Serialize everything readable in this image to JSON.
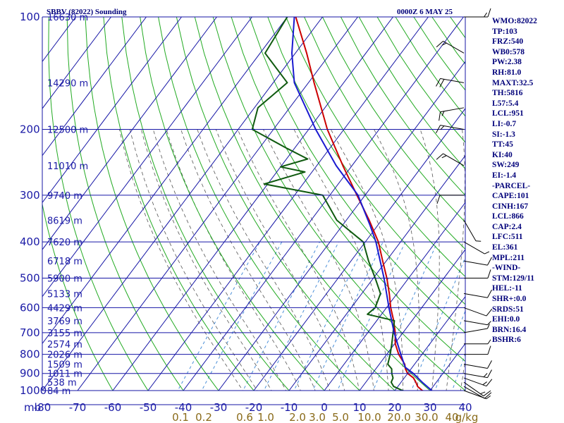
{
  "header": {
    "title": "SBBV (82022) Sounding",
    "time": "0000Z  6 MAY 25"
  },
  "indices": [
    "WMO:82022",
    "TP:103",
    "FRZ:540",
    "WB0:578",
    "PW:2.38",
    "RH:81.0",
    "MAXT:32.5",
    "TH:5816",
    "L57:5.4",
    "LCL:951",
    "LI:-0.7",
    "SI:-1.3",
    "TT:45",
    "KI:40",
    "SW:249",
    "EI:-1.4",
    "-PARCEL-",
    "CAPE:101",
    "CINH:167",
    "LCL:866",
    "CAP:2.4",
    "LFC:511",
    "EL:361",
    "MPL:211",
    "-WIND-",
    "STM:129/11",
    "HEL:-11",
    "SHR+:0.0",
    "SRDS:51",
    "EHI:0.0",
    "BRN:16.4",
    "BSHR:6"
  ],
  "colors": {
    "grid": "#1616a6",
    "temperature": "#cc0000",
    "dewpoint": "#0f5a0f",
    "parcel": "#1a1ad0",
    "dry_adiabat": "#22aa22",
    "moist_adiabat": "#555555",
    "mixing_ratio": "#4a8fd8",
    "wind_barb": "#000000"
  },
  "chart_data": {
    "type": "skew-t",
    "x_axis": {
      "units_label": "mb",
      "range": [
        -80,
        40
      ],
      "ticks": [
        -80,
        -70,
        -60,
        -50,
        -40,
        -30,
        -20,
        -10,
        0,
        10,
        20,
        30,
        40
      ]
    },
    "y_axis": {
      "range": [
        1000,
        100
      ],
      "scale": "log",
      "ticks": [
        100,
        200,
        300,
        400,
        500,
        600,
        700,
        800,
        900,
        1000
      ]
    },
    "height_labels": [
      {
        "p": 100,
        "label": "16630 m"
      },
      {
        "p": 150,
        "label": "14290 m"
      },
      {
        "p": 200,
        "label": "12500 m"
      },
      {
        "p": 250,
        "label": "11010 m"
      },
      {
        "p": 300,
        "label": "9740 m"
      },
      {
        "p": 350,
        "label": "8619 m"
      },
      {
        "p": 400,
        "label": "7620 m"
      },
      {
        "p": 450,
        "label": "6718 m"
      },
      {
        "p": 500,
        "label": "5900 m"
      },
      {
        "p": 550,
        "label": "5133 m"
      },
      {
        "p": 600,
        "label": "4429 m"
      },
      {
        "p": 650,
        "label": "3769 m"
      },
      {
        "p": 700,
        "label": "3155 m"
      },
      {
        "p": 750,
        "label": "2574 m"
      },
      {
        "p": 800,
        "label": "2026 m"
      },
      {
        "p": 850,
        "label": "1509 m"
      },
      {
        "p": 900,
        "label": "1011 m"
      },
      {
        "p": 950,
        "label": "538 m"
      },
      {
        "p": 1000,
        "label": "84 m"
      }
    ],
    "mixing_ratio_labels": [
      "0.1",
      "0.2",
      "0.6",
      "1.0",
      "2.0",
      "3.0",
      "5.0",
      "10.0",
      "20.0",
      "30.0",
      "40",
      "g/kg"
    ],
    "mixing_ratio_values": [
      0.1,
      0.2,
      0.6,
      1.0,
      2.0,
      3.0,
      5.0,
      10.0,
      20.0,
      30.0,
      40
    ],
    "series": [
      {
        "name": "temperature",
        "points": [
          [
            1004,
            28.5
          ],
          [
            1000,
            27.8
          ],
          [
            975,
            25.6
          ],
          [
            950,
            24.2
          ],
          [
            925,
            22.6
          ],
          [
            900,
            20.0
          ],
          [
            875,
            18.4
          ],
          [
            850,
            17.2
          ],
          [
            800,
            13.4
          ],
          [
            750,
            10.2
          ],
          [
            700,
            7.8
          ],
          [
            650,
            4.8
          ],
          [
            600,
            1.2
          ],
          [
            550,
            -2.2
          ],
          [
            500,
            -6.2
          ],
          [
            450,
            -11.0
          ],
          [
            400,
            -16.3
          ],
          [
            350,
            -23.5
          ],
          [
            300,
            -32.3
          ],
          [
            250,
            -42.6
          ],
          [
            200,
            -54.7
          ],
          [
            150,
            -68.4
          ],
          [
            125,
            -76.8
          ],
          [
            100,
            -87.6
          ]
        ]
      },
      {
        "name": "dewpoint",
        "points": [
          [
            1004,
            23.0
          ],
          [
            1000,
            22.2
          ],
          [
            975,
            18.8
          ],
          [
            950,
            17.2
          ],
          [
            925,
            16.8
          ],
          [
            900,
            15.5
          ],
          [
            875,
            14.5
          ],
          [
            850,
            12.4
          ],
          [
            800,
            11.0
          ],
          [
            750,
            9.2
          ],
          [
            700,
            7.2
          ],
          [
            650,
            5.0
          ],
          [
            625,
            -4.0
          ],
          [
            600,
            -3.2
          ],
          [
            550,
            -4.7
          ],
          [
            500,
            -9.5
          ],
          [
            450,
            -15.0
          ],
          [
            400,
            -20.6
          ],
          [
            350,
            -32.7
          ],
          [
            300,
            -42.0
          ],
          [
            280,
            -61.0
          ],
          [
            260,
            -52.0
          ],
          [
            252,
            -60.0
          ],
          [
            240,
            -54.0
          ],
          [
            225,
            -62.0
          ],
          [
            200,
            -76.0
          ],
          [
            175,
            -79.0
          ],
          [
            150,
            -76.0
          ],
          [
            125,
            -88.6
          ],
          [
            100,
            -90.0
          ]
        ]
      },
      {
        "name": "parcel",
        "points": [
          [
            1000,
            30.5
          ],
          [
            950,
            26.0
          ],
          [
            900,
            21.6
          ],
          [
            866,
            18.0
          ],
          [
            800,
            14.0
          ],
          [
            700,
            7.5
          ],
          [
            600,
            0.7
          ],
          [
            500,
            -7.0
          ],
          [
            400,
            -17.0
          ],
          [
            361,
            -22.2
          ],
          [
            300,
            -32.0
          ],
          [
            250,
            -44.5
          ],
          [
            200,
            -58.0
          ],
          [
            150,
            -74.0
          ],
          [
            125,
            -81.0
          ],
          [
            100,
            -88.0
          ]
        ]
      }
    ],
    "wind_profile": [
      {
        "p": 1000,
        "dir": 110,
        "spd": 5
      },
      {
        "p": 975,
        "dir": 120,
        "spd": 10
      },
      {
        "p": 950,
        "dir": 125,
        "spd": 15
      },
      {
        "p": 925,
        "dir": 110,
        "spd": 15
      },
      {
        "p": 900,
        "dir": 100,
        "spd": 15
      },
      {
        "p": 850,
        "dir": 100,
        "spd": 10
      },
      {
        "p": 800,
        "dir": 90,
        "spd": 10
      },
      {
        "p": 750,
        "dir": 90,
        "spd": 5
      },
      {
        "p": 700,
        "dir": 80,
        "spd": 5
      },
      {
        "p": 650,
        "dir": 100,
        "spd": 5
      },
      {
        "p": 600,
        "dir": 110,
        "spd": 10
      },
      {
        "p": 550,
        "dir": 100,
        "spd": 10
      },
      {
        "p": 500,
        "dir": 90,
        "spd": 10
      },
      {
        "p": 450,
        "dir": 100,
        "spd": 10
      },
      {
        "p": 400,
        "dir": 120,
        "spd": 5
      },
      {
        "p": 350,
        "dir": 150,
        "spd": 5
      },
      {
        "p": 300,
        "dir": 270,
        "spd": 10
      },
      {
        "p": 250,
        "dir": 300,
        "spd": 15
      },
      {
        "p": 200,
        "dir": 280,
        "spd": 15
      },
      {
        "p": 175,
        "dir": 260,
        "spd": 15
      },
      {
        "p": 150,
        "dir": 280,
        "spd": 20
      },
      {
        "p": 125,
        "dir": 300,
        "spd": 15
      },
      {
        "p": 100,
        "dir": 90,
        "spd": 15
      }
    ]
  }
}
